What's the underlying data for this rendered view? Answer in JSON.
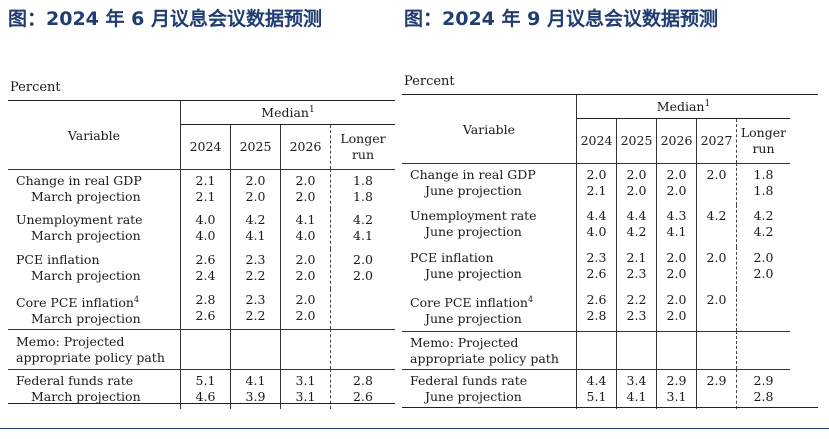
{
  "left": {
    "heading": "图：2024 年 6 月议息会议数据预测",
    "percent": "Percent",
    "variable_header": "Variable",
    "median_label": "Median",
    "median_footnote": "1",
    "columns": [
      {
        "line1": "2024",
        "line2": ""
      },
      {
        "line1": "2025",
        "line2": ""
      },
      {
        "line1": "2026",
        "line2": ""
      },
      {
        "line1": "Longer",
        "line2": "run"
      }
    ],
    "rows": [
      {
        "main": "Change in real GDP",
        "footnote": "",
        "sub": "March projection",
        "main_values": [
          "2.1",
          "2.0",
          "2.0",
          "1.8"
        ],
        "sub_values": [
          "2.1",
          "2.0",
          "2.0",
          "1.8"
        ]
      },
      {
        "main": "Unemployment rate",
        "footnote": "",
        "sub": "March projection",
        "main_values": [
          "4.0",
          "4.2",
          "4.1",
          "4.2"
        ],
        "sub_values": [
          "4.0",
          "4.1",
          "4.0",
          "4.1"
        ]
      },
      {
        "main": "PCE inflation",
        "footnote": "",
        "sub": "March projection",
        "main_values": [
          "2.6",
          "2.3",
          "2.0",
          "2.0"
        ],
        "sub_values": [
          "2.4",
          "2.2",
          "2.0",
          "2.0"
        ]
      },
      {
        "main": "Core PCE inflation",
        "footnote": "4",
        "sub": "March projection",
        "main_values": [
          "2.8",
          "2.3",
          "2.0",
          ""
        ],
        "sub_values": [
          "2.6",
          "2.2",
          "2.0",
          ""
        ]
      }
    ],
    "memo": {
      "line1": "Memo: Projected",
      "line2": "appropriate policy path"
    },
    "ffr": {
      "main": "Federal funds rate",
      "sub": "March projection",
      "main_values": [
        "5.1",
        "4.1",
        "3.1",
        "2.8"
      ],
      "sub_values": [
        "4.6",
        "3.9",
        "3.1",
        "2.6"
      ]
    }
  },
  "right": {
    "heading": "图：2024 年 9 月议息会议数据预测",
    "percent": "Percent",
    "variable_header": "Variable",
    "median_label": "Median",
    "median_footnote": "1",
    "columns": [
      {
        "line1": "2024",
        "line2": ""
      },
      {
        "line1": "2025",
        "line2": ""
      },
      {
        "line1": "2026",
        "line2": ""
      },
      {
        "line1": "2027",
        "line2": ""
      },
      {
        "line1": "Longer",
        "line2": "run"
      }
    ],
    "rows": [
      {
        "main": "Change in real GDP",
        "footnote": "",
        "sub": "June projection",
        "main_values": [
          "2.0",
          "2.0",
          "2.0",
          "2.0",
          "1.8"
        ],
        "sub_values": [
          "2.1",
          "2.0",
          "2.0",
          "",
          "1.8"
        ]
      },
      {
        "main": "Unemployment rate",
        "footnote": "",
        "sub": "June projection",
        "main_values": [
          "4.4",
          "4.4",
          "4.3",
          "4.2",
          "4.2"
        ],
        "sub_values": [
          "4.0",
          "4.2",
          "4.1",
          "",
          "4.2"
        ]
      },
      {
        "main": "PCE inflation",
        "footnote": "",
        "sub": "June projection",
        "main_values": [
          "2.3",
          "2.1",
          "2.0",
          "2.0",
          "2.0"
        ],
        "sub_values": [
          "2.6",
          "2.3",
          "2.0",
          "",
          "2.0"
        ]
      },
      {
        "main": "Core PCE inflation",
        "footnote": "4",
        "sub": "June projection",
        "main_values": [
          "2.6",
          "2.2",
          "2.0",
          "2.0",
          ""
        ],
        "sub_values": [
          "2.8",
          "2.3",
          "2.0",
          "",
          ""
        ]
      }
    ],
    "memo": {
      "line1": "Memo: Projected",
      "line2": "appropriate policy path"
    },
    "ffr": {
      "main": "Federal funds rate",
      "sub": "June projection",
      "main_values": [
        "4.4",
        "3.4",
        "2.9",
        "2.9",
        "2.9"
      ],
      "sub_values": [
        "5.1",
        "4.1",
        "3.1",
        "",
        "2.8"
      ]
    }
  },
  "colors": {
    "heading": "#1f3d73",
    "rule": "#1f3d73",
    "text": "#1a1a1a"
  }
}
